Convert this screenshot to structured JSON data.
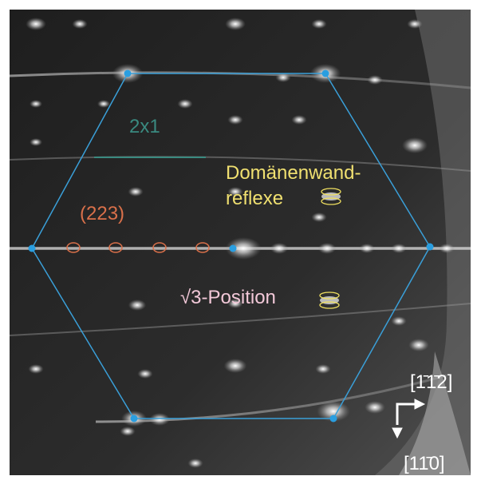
{
  "labels": {
    "superstructure": "2x1",
    "domain_wall": [
      "Domänenwand-",
      "reflexe"
    ],
    "step": "(223)",
    "sqrt3": "√3-Position",
    "dir_up": "[1̄1̄2]",
    "dir_down": "[11̄0]"
  }
}
